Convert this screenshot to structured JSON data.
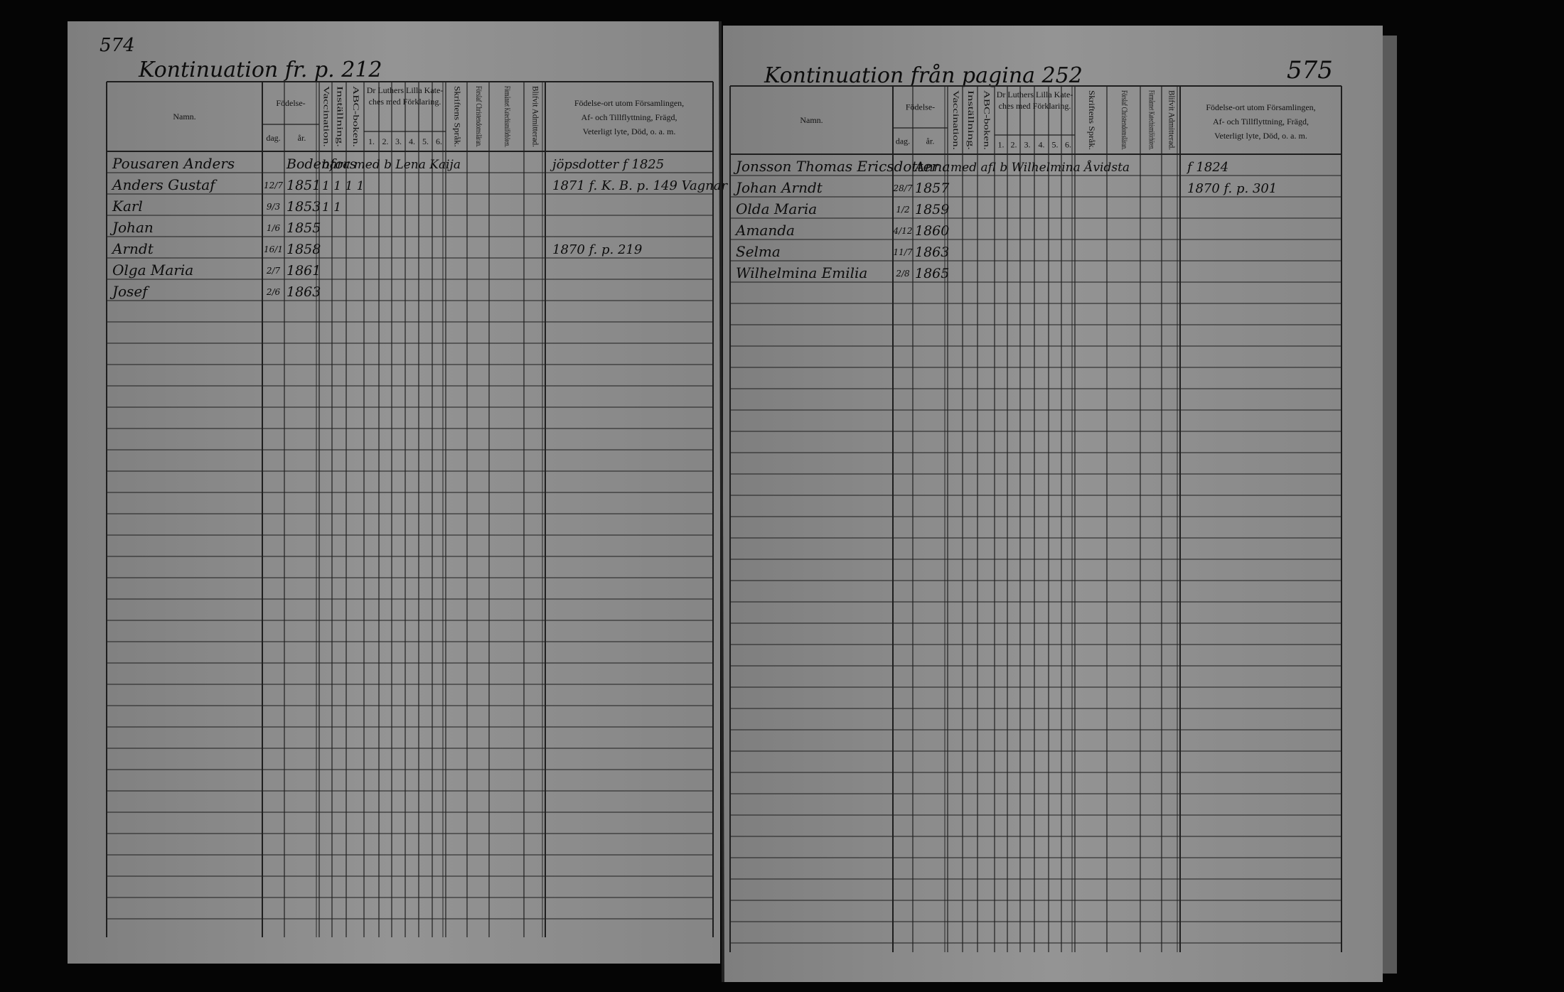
{
  "left_page": {
    "page_number": "574",
    "heading": "Kontinuation fr. p. 212",
    "header": {
      "name": "Namn.",
      "birth": "Födelse-",
      "day": "dag.",
      "year": "år.",
      "vaccination": "Vaccination.",
      "instruction": "Inställning.",
      "abc": "ABC-boken.",
      "catechism": [
        "Dr Luthers Lilla Kate-",
        "ches med Förklaring."
      ],
      "catechism_parts": [
        "1.",
        "2.",
        "3.",
        "4.",
        "5.",
        "6."
      ],
      "writing": "Skriftens Språk.",
      "christian": "Förslaf Christendomsläran.",
      "hearings": "Förmånnet Katechismiförhören.",
      "admitted": "Blifvit Admitterad.",
      "notes": [
        "Födelse-ort utom Församlingen,",
        "Af- och Tillflyttning, Frägd,",
        "Veterligt lyte, Död, o. a. m."
      ]
    },
    "rows": [
      {
        "name": "Pousaren Anders",
        "year": "Bodenfors",
        "marks": "bara    med  b   Lena  Kaija",
        "note": "jöpsdotter f 1825"
      },
      {
        "name": "Anders Gustaf",
        "day": "12/7",
        "year": "1851",
        "marks": "1  1  1  1",
        "note": "1871 f. K. B. p. 149 Vagnar"
      },
      {
        "name": "Karl",
        "day": "9/3",
        "year": "1853",
        "marks": "1  1"
      },
      {
        "name": "Johan",
        "day": "1/6",
        "year": "1855"
      },
      {
        "name": "Arndt",
        "day": "16/1",
        "year": "1858",
        "note": "1870 f. p. 219"
      },
      {
        "name": "Olga Maria",
        "day": "2/7",
        "year": "1861"
      },
      {
        "name": "Josef",
        "day": "2/6",
        "year": "1863"
      }
    ]
  },
  "right_page": {
    "page_number": "575",
    "heading": "Kontinuation från pagina 252",
    "header": {
      "name": "Namn.",
      "birth": "Födelse-",
      "day": "dag.",
      "year": "år.",
      "vaccination": "Vaccination.",
      "instruction": "Inställning.",
      "abc": "ABC-boken.",
      "catechism": [
        "Dr Luthers Lilla Kate-",
        "ches med Förklaring."
      ],
      "catechism_parts": [
        "1.",
        "2.",
        "3.",
        "4.",
        "5.",
        "6."
      ],
      "writing": "Skriftens Språk.",
      "christian": "Förslaf Christendomsläran.",
      "hearings": "Förmånnet Katechismiförhören.",
      "admitted": "Blifvit Admitterad.",
      "notes": [
        "Födelse-ort utom Församlingen,",
        "Af- och Tillflyttning, Frägd,",
        "Veterligt lyte, Död, o. a. m."
      ]
    },
    "rows": [
      {
        "name": "Jonsson Thomas Ericsdotter",
        "year": "Anna",
        "marks": "med  afl  b  Wilhelmina Åvidsta",
        "note": "f 1824"
      },
      {
        "name": "Johan Arndt",
        "day": "28/7",
        "year": "1857",
        "note": "1870 f. p. 301"
      },
      {
        "name": "Olda Maria",
        "day": "1/2",
        "year": "1859"
      },
      {
        "name": "Amanda",
        "day": "4/12",
        "year": "1860"
      },
      {
        "name": "Selma",
        "day": "11/7",
        "year": "1863"
      },
      {
        "name": "Wilhelmina Emilia",
        "day": "2/8",
        "year": "1865"
      }
    ]
  }
}
